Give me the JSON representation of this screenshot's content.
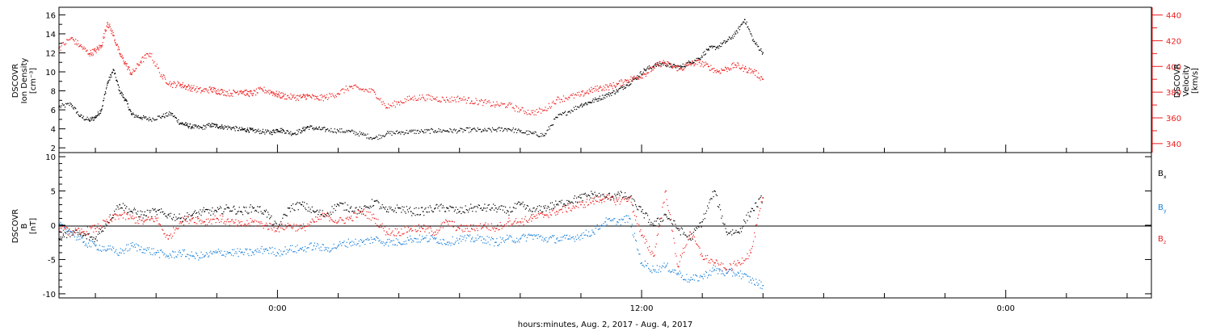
{
  "colors": {
    "black": "#000000",
    "red": "#ee1c1c",
    "blue": "#1a80d9"
  },
  "xaxis": {
    "label": "hours:minutes, Aug.  2, 2017 - Aug.  4, 2017",
    "range_hours": [
      -7.2,
      28.8
    ],
    "major_ticks": [
      {
        "x": 0,
        "label": "0:00"
      },
      {
        "x": 12,
        "label": "12:00"
      },
      {
        "x": 24,
        "label": "0:00"
      }
    ]
  },
  "chart_data": [
    {
      "type": "scatter",
      "panel": "top",
      "ylabel_left": [
        "DSCOVR",
        "Ion Density",
        "[cm⁻³]"
      ],
      "ylabel_right": [
        "DSCOVR",
        "Velocity",
        "[km/s]"
      ],
      "ylim_left": [
        1.5,
        16.8
      ],
      "ylim_right": [
        333,
        446
      ],
      "yticks_left": [
        2,
        4,
        6,
        8,
        10,
        12,
        14,
        16
      ],
      "yticks_right": [
        340,
        360,
        380,
        400,
        420,
        440
      ],
      "series": [
        {
          "axis": "left",
          "color": "black",
          "x": [
            -7.2,
            -6.8,
            -6.5,
            -6.2,
            -6.0,
            -5.8,
            -5.6,
            -5.4,
            -5.2,
            -5.0,
            -4.8,
            -4.5,
            -4.2,
            -3.8,
            -3.5,
            -3.2,
            -3.0,
            -2.8,
            -2.5,
            -2.2,
            -2.0,
            -1.8,
            -1.5,
            -1.2,
            -1.0,
            -0.8,
            -0.5,
            -0.2,
            0.0,
            0.2,
            0.5,
            0.8,
            1.0,
            1.3,
            1.6,
            2.0,
            2.4,
            2.8,
            3.2,
            3.6,
            4.0,
            4.4,
            4.8,
            5.2,
            5.6,
            6.0,
            6.4,
            6.8,
            7.2,
            7.6,
            8.0,
            8.4,
            8.8,
            9.2,
            9.6,
            10.0,
            10.3,
            10.6,
            10.9,
            11.2,
            11.5,
            11.8,
            12.1,
            12.4,
            12.7,
            13.0,
            13.3,
            13.6,
            13.9,
            14.2,
            14.5,
            14.8,
            15.1,
            15.4,
            15.7,
            16.0
          ],
          "y": [
            6.3,
            6.6,
            5.3,
            4.9,
            5.2,
            6.0,
            8.8,
            10.2,
            8.0,
            7.0,
            5.5,
            5.2,
            5.0,
            5.3,
            5.6,
            4.6,
            4.4,
            4.2,
            4.1,
            4.4,
            4.3,
            4.2,
            4.1,
            3.9,
            3.9,
            3.8,
            3.7,
            3.6,
            3.9,
            3.8,
            3.5,
            3.8,
            4.2,
            4.0,
            3.9,
            3.8,
            3.7,
            3.4,
            3.0,
            3.5,
            3.6,
            3.7,
            3.7,
            3.8,
            3.8,
            3.8,
            3.9,
            3.8,
            3.9,
            4.0,
            3.7,
            3.5,
            3.3,
            5.2,
            5.8,
            6.5,
            6.8,
            7.2,
            7.6,
            8.0,
            8.6,
            9.3,
            10.2,
            10.6,
            10.9,
            10.6,
            10.5,
            11.0,
            11.4,
            12.4,
            12.6,
            13.2,
            14.0,
            15.5,
            13.2,
            12.0
          ]
        },
        {
          "axis": "right",
          "color": "red",
          "x": [
            -7.2,
            -6.8,
            -6.5,
            -6.2,
            -6.0,
            -5.8,
            -5.6,
            -5.4,
            -5.2,
            -5.0,
            -4.8,
            -4.5,
            -4.2,
            -3.8,
            -3.5,
            -3.2,
            -3.0,
            -2.8,
            -2.5,
            -2.2,
            -2.0,
            -1.8,
            -1.5,
            -1.2,
            -1.0,
            -0.8,
            -0.5,
            -0.2,
            0.0,
            0.2,
            0.5,
            0.8,
            1.0,
            1.3,
            1.6,
            2.0,
            2.4,
            2.8,
            3.2,
            3.6,
            4.0,
            4.4,
            4.8,
            5.2,
            5.6,
            6.0,
            6.4,
            6.8,
            7.2,
            7.6,
            8.0,
            8.4,
            8.8,
            9.2,
            9.6,
            10.0,
            10.3,
            10.6,
            10.9,
            11.2,
            11.5,
            11.8,
            12.1,
            12.4,
            12.7,
            13.0,
            13.3,
            13.6,
            13.9,
            14.2,
            14.5,
            14.8,
            15.1,
            15.4,
            15.7,
            16.0
          ],
          "y": [
            414,
            422,
            416,
            410,
            412,
            416,
            434,
            424,
            410,
            402,
            394,
            404,
            410,
            392,
            386,
            386,
            384,
            383,
            381,
            382,
            381,
            380,
            379,
            381,
            379,
            379,
            382,
            380,
            378,
            377,
            376,
            376,
            377,
            375,
            376,
            379,
            384,
            382,
            380,
            368,
            372,
            375,
            376,
            375,
            374,
            375,
            373,
            372,
            370,
            370,
            366,
            364,
            366,
            374,
            376,
            378,
            381,
            383,
            384,
            386,
            389,
            391,
            394,
            399,
            403,
            400,
            398,
            402,
            403,
            400,
            396,
            398,
            401,
            398,
            396,
            390
          ]
        }
      ]
    },
    {
      "type": "scatter",
      "panel": "bottom",
      "ylabel": [
        "DSCOVR",
        "B",
        "[nT]"
      ],
      "ylim": [
        -10.6,
        10.6
      ],
      "yticks": [
        -10,
        -5,
        0,
        5,
        10
      ],
      "legend": [
        {
          "label": "Bx",
          "main": "B",
          "sub": "x",
          "color": "black"
        },
        {
          "label": "By",
          "main": "B",
          "sub": "y",
          "color": "blue"
        },
        {
          "label": "Bz",
          "main": "B",
          "sub": "z",
          "color": "red"
        }
      ],
      "series": [
        {
          "name": "Bx",
          "color": "black",
          "x": [
            -7.2,
            -6.8,
            -6.4,
            -6.0,
            -5.6,
            -5.2,
            -4.8,
            -4.4,
            -4.0,
            -3.6,
            -3.2,
            -2.8,
            -2.4,
            -2.0,
            -1.6,
            -1.2,
            -0.8,
            -0.4,
            0.0,
            0.4,
            0.8,
            1.2,
            1.6,
            2.0,
            2.4,
            2.8,
            3.2,
            3.6,
            4.0,
            4.4,
            4.8,
            5.2,
            5.6,
            6.0,
            6.4,
            6.8,
            7.2,
            7.6,
            8.0,
            8.4,
            8.8,
            9.2,
            9.6,
            10.0,
            10.4,
            10.8,
            11.2,
            11.6,
            12.0,
            12.4,
            12.8,
            13.2,
            13.6,
            14.0,
            14.4,
            14.8,
            15.2,
            15.6,
            16.0
          ],
          "y": [
            -2.0,
            -1.0,
            -1.5,
            -2.0,
            0.5,
            3.0,
            2.0,
            1.5,
            2.0,
            1.5,
            1.0,
            1.5,
            2.0,
            2.0,
            2.5,
            2.0,
            2.5,
            2.0,
            -0.5,
            2.5,
            3.0,
            2.0,
            1.5,
            3.0,
            2.5,
            2.0,
            3.5,
            2.0,
            2.5,
            2.0,
            2.0,
            2.5,
            2.5,
            2.0,
            2.5,
            2.5,
            2.5,
            2.0,
            3.0,
            2.0,
            2.5,
            3.0,
            3.5,
            4.0,
            4.5,
            4.0,
            4.5,
            4.0,
            2.0,
            0.0,
            1.5,
            -0.5,
            -2.0,
            0.5,
            5.0,
            -1.0,
            -1.0,
            2.0,
            4.0
          ]
        },
        {
          "name": "Bz",
          "color": "red",
          "x": [
            -7.2,
            -6.8,
            -6.4,
            -6.0,
            -5.6,
            -5.2,
            -4.8,
            -4.4,
            -4.0,
            -3.6,
            -3.2,
            -2.8,
            -2.4,
            -2.0,
            -1.6,
            -1.2,
            -0.8,
            -0.4,
            0.0,
            0.4,
            0.8,
            1.2,
            1.6,
            2.0,
            2.4,
            2.8,
            3.2,
            3.6,
            4.0,
            4.4,
            4.8,
            5.2,
            5.6,
            6.0,
            6.4,
            6.8,
            7.2,
            7.6,
            8.0,
            8.4,
            8.8,
            9.2,
            9.6,
            10.0,
            10.4,
            10.8,
            11.2,
            11.6,
            12.0,
            12.4,
            12.8,
            13.2,
            13.6,
            14.0,
            14.4,
            14.8,
            15.2,
            15.6,
            16.0
          ],
          "y": [
            -0.5,
            -1.0,
            -1.0,
            -0.5,
            0.5,
            1.5,
            1.0,
            0.5,
            1.0,
            -2.0,
            0.5,
            1.0,
            0.5,
            1.0,
            0.5,
            0.0,
            0.5,
            0.0,
            -0.5,
            0.0,
            -0.5,
            0.5,
            1.5,
            0.5,
            1.0,
            2.0,
            1.0,
            -1.0,
            -1.0,
            -0.5,
            -0.5,
            -1.0,
            0.5,
            -0.5,
            -0.5,
            0.0,
            -0.5,
            0.5,
            0.5,
            1.0,
            1.5,
            2.0,
            2.5,
            3.0,
            3.5,
            4.0,
            3.5,
            4.0,
            -1.5,
            -4.5,
            5.0,
            -6.0,
            -1.0,
            -4.5,
            -5.5,
            -6.5,
            -5.5,
            -4.0,
            4.0
          ]
        },
        {
          "name": "By",
          "color": "blue",
          "x": [
            -7.2,
            -6.8,
            -6.4,
            -6.0,
            -5.6,
            -5.2,
            -4.8,
            -4.4,
            -4.0,
            -3.6,
            -3.2,
            -2.8,
            -2.4,
            -2.0,
            -1.6,
            -1.2,
            -0.8,
            -0.4,
            0.0,
            0.4,
            0.8,
            1.2,
            1.6,
            2.0,
            2.4,
            2.8,
            3.2,
            3.6,
            4.0,
            4.4,
            4.8,
            5.2,
            5.6,
            6.0,
            6.4,
            6.8,
            7.2,
            7.6,
            8.0,
            8.4,
            8.8,
            9.2,
            9.6,
            10.0,
            10.4,
            10.8,
            11.2,
            11.6,
            12.0,
            12.4,
            12.8,
            13.2,
            13.6,
            14.0,
            14.4,
            14.8,
            15.2,
            15.6,
            16.0
          ],
          "y": [
            0.0,
            -1.0,
            -2.5,
            -3.0,
            -3.5,
            -4.0,
            -3.0,
            -3.5,
            -4.0,
            -4.5,
            -4.0,
            -4.5,
            -4.5,
            -4.0,
            -4.0,
            -4.0,
            -4.0,
            -3.5,
            -4.0,
            -3.5,
            -3.5,
            -3.0,
            -3.5,
            -3.0,
            -2.5,
            -2.5,
            -2.0,
            -2.5,
            -2.5,
            -2.0,
            -2.0,
            -2.0,
            -2.5,
            -2.0,
            -2.0,
            -2.0,
            -2.5,
            -2.0,
            -2.0,
            -1.5,
            -2.0,
            -2.0,
            -2.0,
            -1.5,
            -1.0,
            0.5,
            0.5,
            1.0,
            -5.5,
            -6.5,
            -6.0,
            -7.0,
            -8.0,
            -7.5,
            -6.5,
            -7.0,
            -7.0,
            -8.0,
            -8.8
          ]
        }
      ]
    }
  ]
}
